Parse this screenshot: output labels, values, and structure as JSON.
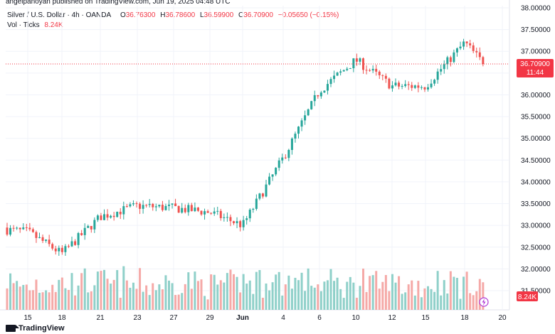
{
  "header": {
    "publisher_line": "angelpanoyan published on TradingView.com, Jun 19, 2025 04:48 UTC",
    "symbol": "Silver / U.S. Dollar · 4h · OANDA",
    "open_label": "O",
    "open": "36.76300",
    "high_label": "H",
    "high": "36.78600",
    "low_label": "L",
    "low": "36.59900",
    "close_label": "C",
    "close": "36.70900",
    "change": "−0.05650 (−0.15%)",
    "volume_label": "Vol · Ticks",
    "volume_value": "8.24K"
  },
  "footer": {
    "brand": "TradingView"
  },
  "chart_data": {
    "type": "candlestick",
    "title": "Silver / U.S. Dollar · 4h · OANDA",
    "y_axis": {
      "ticks": [
        "38.00000",
        "37.50000",
        "37.00000",
        "36.50000",
        "36.00000",
        "35.50000",
        "35.00000",
        "34.50000",
        "34.00000",
        "33.50000",
        "33.00000",
        "32.50000",
        "32.00000",
        "31.50000"
      ],
      "range": [
        31.5,
        38.0
      ]
    },
    "x_axis": {
      "ticks": [
        "15",
        "18",
        "21",
        "23",
        "27",
        "29",
        "Jun",
        "4",
        "6",
        "10",
        "12",
        "15",
        "18",
        "20"
      ]
    },
    "current_price": {
      "value": "36.70900",
      "countdown": "11:44"
    },
    "current_volume": "8.24K",
    "colors": {
      "up": "#26a69a",
      "down": "#ef5350",
      "vol_up": "#8fd0c9",
      "vol_down": "#f5a9a7",
      "last_line": "#f23645"
    },
    "anchors": [
      [
        "15",
        32.85
      ],
      [
        "18",
        32.35
      ],
      [
        "21",
        33.2
      ],
      [
        "23",
        33.45
      ],
      [
        "27",
        33.4
      ],
      [
        "29",
        33.3
      ],
      [
        "Jun",
        33.0
      ],
      [
        "4",
        34.55
      ],
      [
        "6",
        36.1
      ],
      [
        "10",
        36.8
      ],
      [
        "12",
        36.2
      ],
      [
        "15",
        36.2
      ],
      [
        "18",
        37.2
      ],
      [
        "19",
        36.71
      ]
    ]
  }
}
